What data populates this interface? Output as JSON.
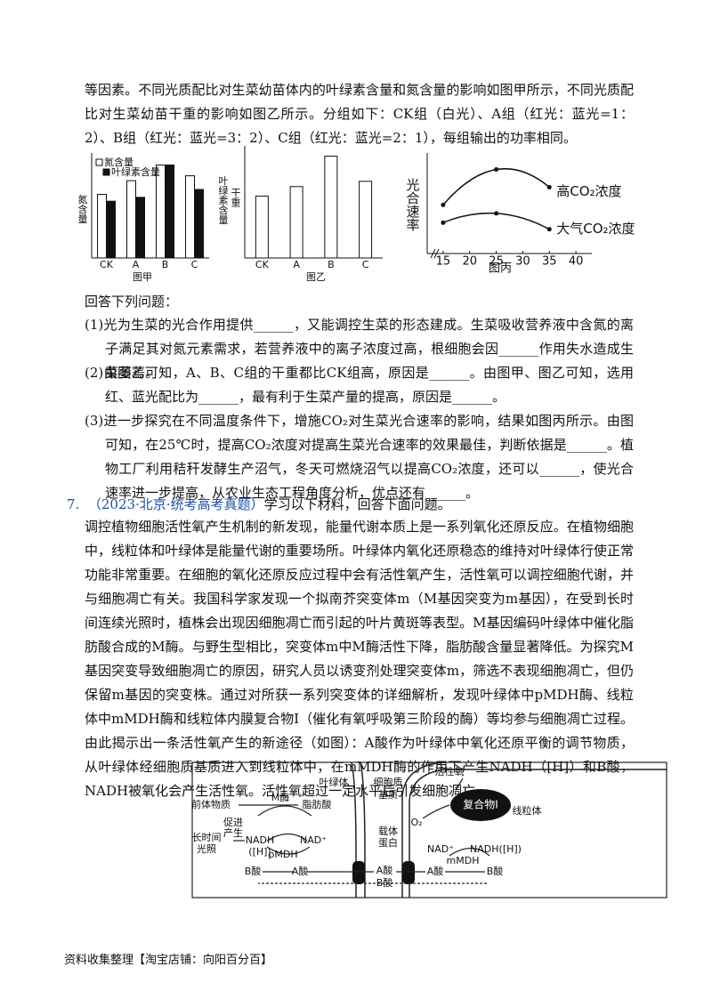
{
  "intro": "等因素。不同光质配比对生菜幼苗体内的叶绿素含量和氮含量的影响如图甲所示，不同光质配比对生菜幼苗干重的影响如图乙所示。分组如下：CK组（白光）、A组（红光：蓝光=1：2）、B组（红光：蓝光=3：2）、C组（红光：蓝光=2：1），每组输出的功率相同。",
  "chart_data": [
    {
      "type": "bar",
      "xlabel": "图甲",
      "ylabel": "氮含量",
      "ylabel_right": "叶绿素含量",
      "categories": [
        "CK",
        "A",
        "B",
        "C"
      ],
      "ylim": [
        0,
        100
      ],
      "series": [
        {
          "name": "氮含量",
          "color": "#ffffff",
          "values": [
            65,
            79,
            95,
            84
          ]
        },
        {
          "name": "叶绿素含量",
          "color": "#111111",
          "values": [
            58,
            62,
            95,
            70
          ]
        }
      ]
    },
    {
      "type": "bar",
      "xlabel": "图乙",
      "ylabel": "干重",
      "categories": [
        "CK",
        "A",
        "B",
        "C"
      ],
      "ylim": [
        0,
        100
      ],
      "series": [
        {
          "color": "#ffffff",
          "values": [
            59,
            68,
            97,
            73
          ]
        }
      ]
    },
    {
      "type": "line",
      "xlabel": "图丙",
      "ylabel": "光合速率",
      "xlim": [
        12,
        43
      ],
      "xticks": [
        15,
        20,
        25,
        30,
        35,
        40
      ],
      "ylim": [
        0,
        100
      ],
      "series": [
        {
          "name": "高CO₂浓度",
          "color": "#111111",
          "x": [
            15,
            25,
            35
          ],
          "values": [
            52,
            90,
            71
          ]
        },
        {
          "name": "大气CO₂浓度",
          "color": "#111111",
          "x": [
            15,
            25,
            35
          ],
          "values": [
            33,
            43,
            26
          ]
        }
      ]
    }
  ],
  "questions_heading": "回答下列问题：",
  "questions": [
    "(1)光为生菜的光合作用提供______，又能调控生菜的形态建成。生菜吸收营养液中含氮的离子满足其对氮元素需求，若营养液中的离子浓度过高，根细胞会因______作用失水造成生菜萎蔫。",
    "(2)由图乙可知，A、B、C组的干重都比CK组高，原因是______。由图甲、图乙可知，选用红、蓝光配比为______，最有利于生菜产量的提高，原因是______。",
    "(3)进一步探究在不同温度条件下，增施CO₂对生菜光合速率的影响，结果如图丙所示。由图可知，在25℃时，提高CO₂浓度对提高生菜光合速率的效果最佳，判断依据是______。植物工厂利用秸秆发酵生产沼气，冬天可燃烧沼气以提高CO₂浓度，还可以______，使光合速率进一步提高，从农业生态工程角度分析，优点还有______。"
  ],
  "problem": {
    "number": "7.",
    "source": "（2023·北京·统考高考真题）",
    "prompt": "学习以下材料，回答下面问题。",
    "material": "调控植物细胞活性氧产生机制的新发现，能量代谢本质上是一系列氧化还原反应。在植物细胞中，线粒体和叶绿体是能量代谢的重要场所。叶绿体内氧化还原稳态的维持对叶绿体行使正常功能非常重要。在细胞的氧化还原反应过程中会有活性氧产生，活性氧可以调控细胞代谢，并与细胞凋亡有关。我国科学家发现一个拟南芥突变体m（M基因突变为m基因），在受到长时间连续光照时，植株会出现因细胞凋亡而引起的叶片黄斑等表型。M基因编码叶绿体中催化脂肪酸合成的M酶。与野生型相比，突变体m中M酶活性下降，脂肪酸含量显著降低。为探究M基因突变导致细胞凋亡的原因，研究人员以诱变剂处理突变体m，筛选不表现细胞凋亡，但仍保留m基因的突变株。通过对所获一系列突变体的详细解析，发现叶绿体中pMDH酶、线粒体中mMDH酶和线粒体内膜复合物Ⅰ（催化有氧呼吸第三阶段的酶）等均参与细胞凋亡过程。由此揭示出一条活性氧产生的新途径（如图）：A酸作为叶绿体中氧化还原平衡的调节物质，从叶绿体经细胞质基质进入到线粒体中，在mMDH酶的作用下产生NADH（[H]）和B酸，NADH被氧化会产生活性氧。活性氧超过一定水平后引发细胞凋亡。"
  },
  "diagram": {
    "labels": [
      "叶绿体",
      "前体物质",
      "M酶",
      "脂肪酸",
      "促进",
      "产生",
      "长时间",
      "光照",
      "NADH",
      "([H])",
      "NAD⁺",
      "pMDH",
      "B酸",
      "A酸",
      "细胞质",
      "基质",
      "载体",
      "蛋白",
      "A酸",
      "B酸",
      "活性氧",
      "复合物Ⅰ",
      "线粒体",
      "O₂",
      "NAD⁺",
      "NADH([H])",
      "mMDH",
      "A酸",
      "B酸"
    ]
  },
  "footer": "资料收集整理【淘宝店铺：向阳百分百】"
}
